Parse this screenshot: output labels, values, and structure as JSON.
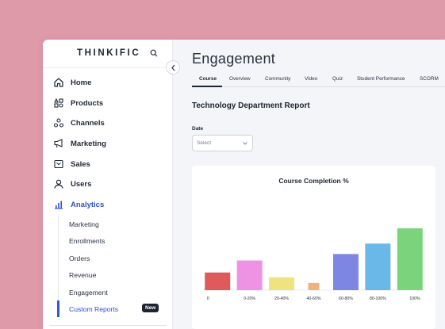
{
  "sidebar": {
    "logo": "THINKIFIC",
    "nav": [
      {
        "label": "Home",
        "icon": "home-icon"
      },
      {
        "label": "Products",
        "icon": "products-icon"
      },
      {
        "label": "Channels",
        "icon": "channels-icon"
      },
      {
        "label": "Marketing",
        "icon": "megaphone-icon"
      },
      {
        "label": "Sales",
        "icon": "sales-icon"
      },
      {
        "label": "Users",
        "icon": "user-icon"
      },
      {
        "label": "Analytics",
        "icon": "analytics-icon",
        "active": true
      }
    ],
    "sub": [
      {
        "label": "Marketing"
      },
      {
        "label": "Enrollments"
      },
      {
        "label": "Orders"
      },
      {
        "label": "Revenue"
      },
      {
        "label": "Engagement"
      },
      {
        "label": "Custom Reports",
        "active": true,
        "badge": "New"
      }
    ]
  },
  "main": {
    "title": "Engagement",
    "tabs": [
      "Course",
      "Overview",
      "Community",
      "Video",
      "Quiz",
      "Student Performance",
      "SCORM"
    ],
    "active_tab": "Course",
    "report_title": "Technology Department Report",
    "date_label": "Date",
    "date_placeholder": "Select"
  },
  "chart_data": {
    "type": "bar",
    "title": "Course Completion %",
    "categories": [
      "0",
      "0-20%",
      "20-40%",
      "40-60%",
      "60-80%",
      "80-100%",
      "100%"
    ],
    "values": [
      22,
      37,
      16,
      9,
      45,
      58,
      77
    ],
    "ylim": [
      0,
      80
    ],
    "colors": [
      "#e05a5a",
      "#ee92e3",
      "#efe37e",
      "#efb27b",
      "#7e86e4",
      "#6ab8e8",
      "#7bd47c"
    ],
    "grid": false
  },
  "colors": {
    "background": "#df9aaa",
    "accent": "#2f4fcf"
  }
}
